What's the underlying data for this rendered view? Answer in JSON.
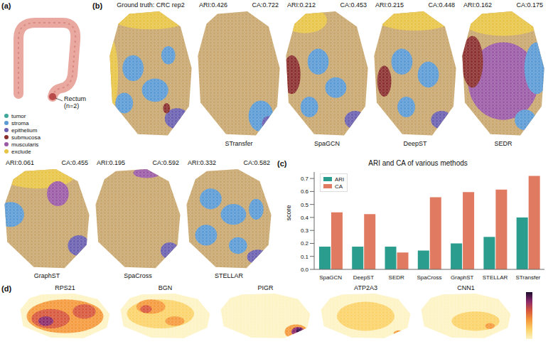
{
  "panels": {
    "a": {
      "letter": "(a)",
      "label": "Rectum (n=2)",
      "legend": [
        {
          "name": "tumor",
          "color": "#3fa89a"
        },
        {
          "name": "stroma",
          "color": "#5b9bd5"
        },
        {
          "name": "epithelium",
          "color": "#6a5fb0"
        },
        {
          "name": "submucosa",
          "color": "#8b2e2e"
        },
        {
          "name": "muscularis",
          "color": "#9b5aa6"
        },
        {
          "name": "exclude",
          "color": "#e8c547"
        }
      ]
    },
    "b": {
      "letter": "(b)",
      "ground_truth_title": "Ground truth: CRC rep2",
      "metric_labels": [
        "ARI",
        "CA"
      ],
      "methods": [
        {
          "name": "STransfer",
          "ARI": 0.426,
          "CA": 0.722
        },
        {
          "name": "SpaGCN",
          "ARI": 0.212,
          "CA": 0.453
        },
        {
          "name": "DeepST",
          "ARI": 0.215,
          "CA": 0.448
        },
        {
          "name": "SEDR",
          "ARI": 0.162,
          "CA": 0.175
        },
        {
          "name": "GraphST",
          "ARI": 0.061,
          "CA": 0.455
        },
        {
          "name": "SpaCross",
          "ARI": 0.195,
          "CA": 0.592
        },
        {
          "name": "STELLAR",
          "ARI": 0.332,
          "CA": 0.582
        }
      ]
    },
    "c": {
      "letter": "(c)"
    },
    "d": {
      "letter": "(d)",
      "genes": [
        "RPS21",
        "BGN",
        "PIGR",
        "ATP2A3",
        "CNN1"
      ]
    }
  },
  "chart_data": {
    "type": "bar",
    "title": "ARI and CA of various methods",
    "y_label": "score",
    "categories": [
      "SpaGCN",
      "DeepST",
      "SEDR",
      "SpaCross",
      "GraphST",
      "STELLAR",
      "STransfer"
    ],
    "series": [
      {
        "name": "ARI",
        "color": "#2a9d8f",
        "values": [
          0.175,
          0.175,
          0.175,
          0.145,
          0.2,
          0.25,
          0.4
        ]
      },
      {
        "name": "CA",
        "color": "#e07b62",
        "values": [
          0.44,
          0.425,
          0.13,
          0.555,
          0.595,
          0.615,
          0.72
        ]
      }
    ],
    "ylim": [
      0,
      0.75
    ],
    "yticks": [
      {
        "value": 0,
        "label": "0.0"
      },
      0.1,
      0.2,
      0.3,
      0.4,
      0.5,
      0.6,
      0.7
    ],
    "legend": "upper left",
    "grid": false
  }
}
